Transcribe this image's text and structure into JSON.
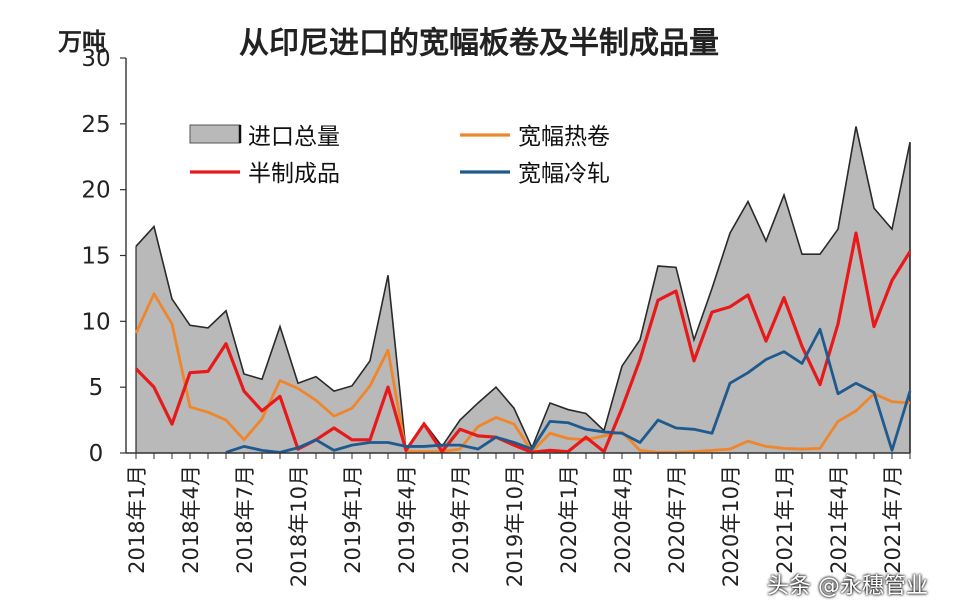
{
  "chart_data": {
    "type": "area",
    "title": "从印尼进口的宽幅板卷及半制成品量",
    "ylabel": "万吨",
    "ylim": [
      0,
      30
    ],
    "yticks": [
      0,
      5,
      10,
      15,
      20,
      25,
      30
    ],
    "legend_position": "top-left",
    "x_labels": [
      "2018年1月",
      "2018年4月",
      "2018年7月",
      "2018年10月",
      "2019年1月",
      "2019年4月",
      "2019年7月",
      "2019年10月",
      "2020年1月",
      "2020年4月",
      "2020年7月",
      "2020年10月",
      "2021年1月",
      "2021年4月",
      "2021年7月"
    ],
    "x_label_index": [
      0,
      3,
      6,
      9,
      12,
      15,
      18,
      21,
      24,
      27,
      30,
      33,
      36,
      39,
      42
    ],
    "n_points": 44,
    "series": [
      {
        "name": "进口总量",
        "kind": "area",
        "color": "#b9b9b9",
        "edge": "#2a2a2a",
        "values": [
          15.7,
          17.2,
          11.7,
          9.7,
          9.5,
          10.8,
          6.0,
          5.6,
          9.6,
          5.3,
          5.8,
          4.7,
          5.1,
          7.0,
          13.5,
          0.2,
          2.3,
          0.5,
          2.5,
          3.8,
          5.0,
          3.4,
          0.4,
          3.8,
          3.3,
          3.0,
          1.7,
          6.6,
          8.6,
          14.2,
          14.1,
          8.6,
          12.5,
          16.7,
          19.1,
          16.1,
          19.6,
          15.1,
          15.1,
          17.0,
          24.8,
          18.6,
          17.0,
          23.6
        ]
      },
      {
        "name": "宽幅热卷",
        "kind": "line",
        "color": "#f0862b",
        "values": [
          9.1,
          12.1,
          9.8,
          3.5,
          3.1,
          2.5,
          1.0,
          2.6,
          5.5,
          4.9,
          4.0,
          2.8,
          3.4,
          5.1,
          7.8,
          0.1,
          0.1,
          0.1,
          0.3,
          2.0,
          2.7,
          2.2,
          0.1,
          1.5,
          1.1,
          1.0,
          1.3,
          1.6,
          0.2,
          0.05,
          0.05,
          0.1,
          0.2,
          0.3,
          0.9,
          0.5,
          0.35,
          0.3,
          0.35,
          2.4,
          3.2,
          4.5,
          3.9,
          3.8
        ]
      },
      {
        "name": "半制成品",
        "kind": "line",
        "color": "#e8191a",
        "values": [
          6.4,
          5.0,
          2.2,
          6.1,
          6.2,
          8.3,
          4.7,
          3.2,
          4.3,
          0.3,
          1.0,
          1.9,
          1.0,
          1.0,
          5.0,
          0.2,
          2.2,
          0.1,
          1.8,
          1.3,
          1.2,
          0.6,
          0.05,
          0.2,
          0.1,
          1.2,
          0.1,
          3.4,
          7.1,
          11.6,
          12.3,
          7.0,
          10.7,
          11.1,
          12.0,
          8.5,
          11.8,
          8.1,
          5.2,
          9.8,
          16.7,
          9.6,
          13.1,
          15.3
        ]
      },
      {
        "name": "宽幅冷轧",
        "kind": "line",
        "color": "#1f5a8f",
        "values": [
          null,
          null,
          null,
          null,
          null,
          0.05,
          0.5,
          0.2,
          0.05,
          0.4,
          1.0,
          0.2,
          0.6,
          0.8,
          0.8,
          0.5,
          0.5,
          0.6,
          0.6,
          0.3,
          1.2,
          0.8,
          0.3,
          2.4,
          2.3,
          1.8,
          1.6,
          1.5,
          0.8,
          2.5,
          1.9,
          1.8,
          1.5,
          5.3,
          6.1,
          7.1,
          7.7,
          6.8,
          9.4,
          4.5,
          5.3,
          4.6,
          0.2,
          4.7
        ]
      }
    ]
  },
  "watermark": "头条 @永穗管业"
}
